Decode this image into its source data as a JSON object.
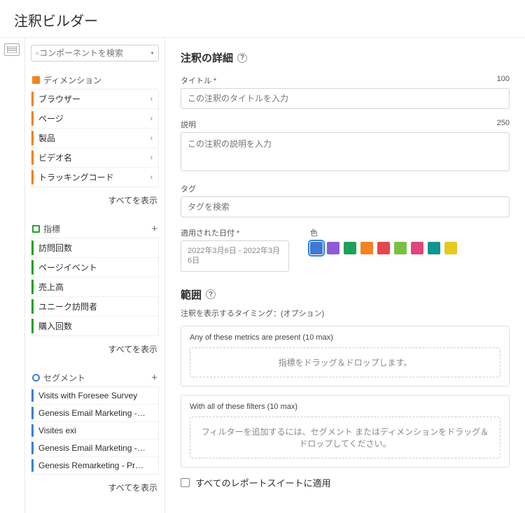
{
  "header": {
    "title": "注釈ビルダー"
  },
  "search": {
    "placeholder": "コンポーネントを検索"
  },
  "dimensions": {
    "label": "ディメンション",
    "color": "#f58220",
    "items": [
      {
        "label": "ブラウザー"
      },
      {
        "label": "ページ"
      },
      {
        "label": "製品"
      },
      {
        "label": "ビデオ名"
      },
      {
        "label": "トラッキングコード"
      }
    ],
    "show_all": "すべてを表示"
  },
  "metrics": {
    "label": "指標",
    "color": "#25a125",
    "items": [
      {
        "label": "訪問回数"
      },
      {
        "label": "ページイベント"
      },
      {
        "label": "売上高"
      },
      {
        "label": "ユニーク訪問者"
      },
      {
        "label": "購入回数"
      }
    ],
    "show_all": "すべてを表示"
  },
  "segments": {
    "label": "セグメント",
    "color": "#3b82d4",
    "items": [
      {
        "label": "Visits with Foresee Survey"
      },
      {
        "label": "Genesis Email Marketing - Pro..."
      },
      {
        "label": "Visites exi"
      },
      {
        "label": "Genesis Email Marketing - Pro..."
      },
      {
        "label": "Genesis Remarketing - Produc..."
      }
    ],
    "show_all": "すべてを表示"
  },
  "details": {
    "section_title": "注釈の詳細",
    "title_label": "タイトル *",
    "title_limit": "100",
    "title_placeholder": "この注釈のタイトルを入力",
    "desc_label": "説明",
    "desc_limit": "250",
    "desc_placeholder": "この注釈の説明を入力",
    "tag_label": "タグ",
    "tag_placeholder": "タグを検索",
    "date_label": "適用された日付 *",
    "date_value": "2022年3月6日 - 2022年3月6日",
    "color_label": "色",
    "colors": [
      "#4178d4",
      "#8e5bd6",
      "#1fa05a",
      "#f58220",
      "#e34850",
      "#7bc043",
      "#e0457b",
      "#129490",
      "#e8c81d"
    ],
    "selected_color_index": 0
  },
  "scope": {
    "section_title": "範囲",
    "subtitle": "注釈を表示するタイミング：(オプション)",
    "metrics_label": "Any of these metrics are present (10 max)",
    "metrics_drop": "指標をドラッグ＆ドロップします。",
    "filters_label": "With all of these filters (10 max)",
    "filters_drop": "フィルターを追加するには、セグメント またはディメンションをドラッグ＆ドロップしてください。",
    "apply_all_label": "すべてのレポートスイートに適用"
  }
}
